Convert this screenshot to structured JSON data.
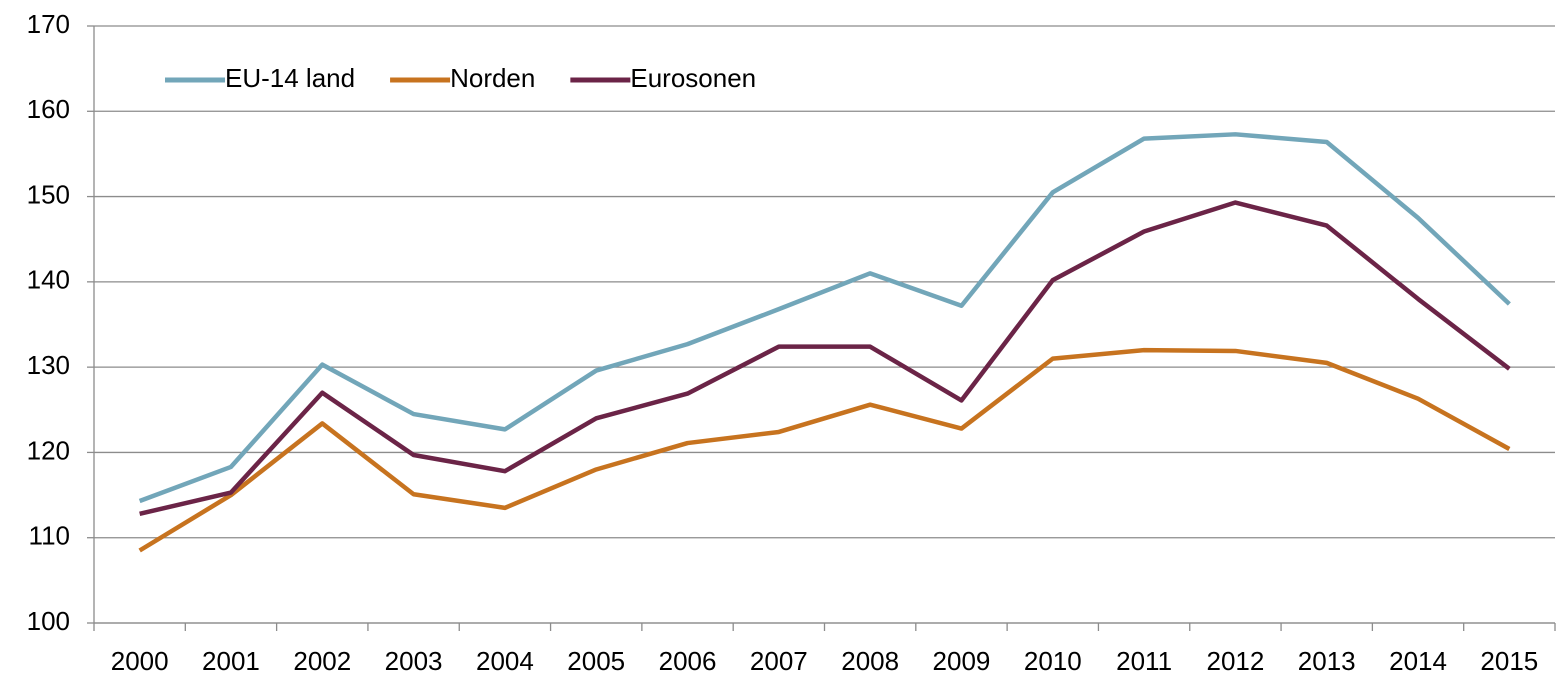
{
  "chart_data": {
    "type": "line",
    "categories": [
      "2000",
      "2001",
      "2002",
      "2003",
      "2004",
      "2005",
      "2006",
      "2007",
      "2008",
      "2009",
      "2010",
      "2011",
      "2012",
      "2013",
      "2014",
      "2015"
    ],
    "series": [
      {
        "name": "EU-14 land",
        "color": "#72a6b9",
        "values": [
          114.3,
          118.3,
          130.3,
          124.5,
          122.7,
          129.6,
          132.7,
          136.8,
          141.0,
          137.2,
          150.5,
          156.8,
          157.3,
          156.4,
          147.5,
          137.4
        ]
      },
      {
        "name": "Norden",
        "color": "#c7731f",
        "values": [
          108.5,
          115.0,
          123.4,
          115.1,
          113.5,
          118.0,
          121.1,
          122.4,
          125.6,
          122.8,
          131.0,
          132.0,
          131.9,
          130.5,
          126.3,
          120.4
        ]
      },
      {
        "name": "Eurosonen",
        "color": "#6b2447",
        "values": [
          112.8,
          115.3,
          127.0,
          119.7,
          117.8,
          124.0,
          126.9,
          132.4,
          132.4,
          126.1,
          140.2,
          145.9,
          149.3,
          146.6,
          138.0,
          129.8
        ]
      }
    ],
    "ylim": [
      100,
      170
    ],
    "yticks": [
      100,
      110,
      120,
      130,
      140,
      150,
      160,
      170
    ],
    "grid": true,
    "legend": "upper left"
  }
}
